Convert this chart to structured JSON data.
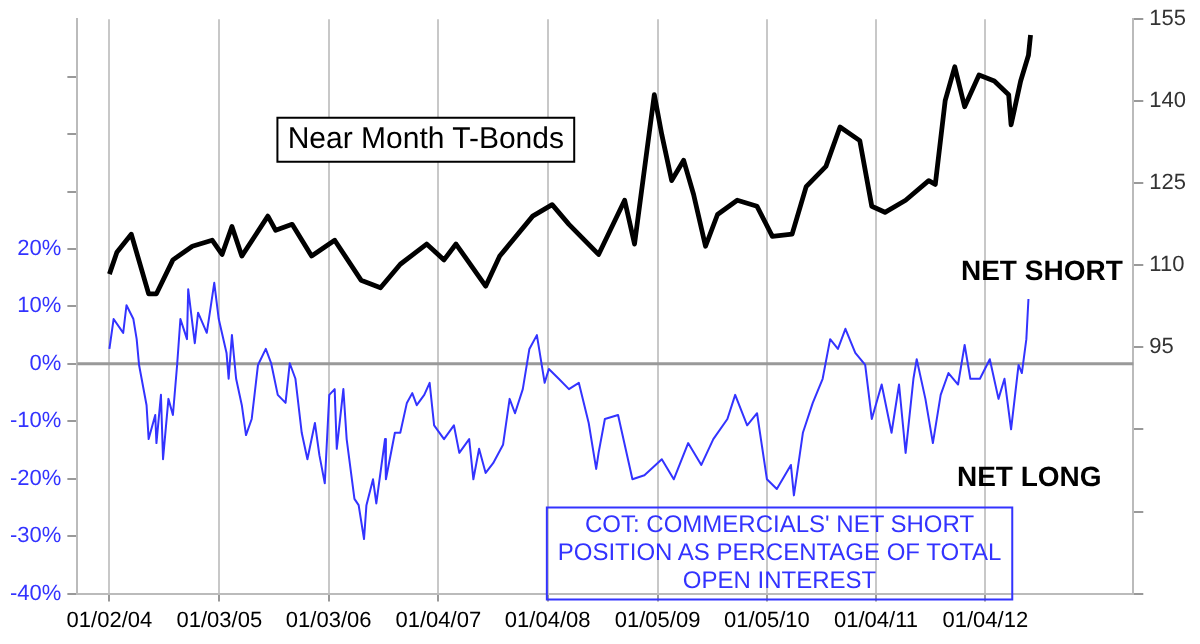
{
  "chart_data": {
    "type": "line",
    "xlim": [
      "2003-09-17",
      "2013-05-12"
    ],
    "xticks": [
      {
        "value": "2004-01-02",
        "label": "01/02/04"
      },
      {
        "value": "2005-01-03",
        "label": "01/03/05"
      },
      {
        "value": "2006-01-03",
        "label": "01/03/06"
      },
      {
        "value": "2007-01-04",
        "label": "01/04/07"
      },
      {
        "value": "2008-01-04",
        "label": "01/04/08"
      },
      {
        "value": "2009-01-05",
        "label": "01/05/09"
      },
      {
        "value": "2010-01-05",
        "label": "01/05/10"
      },
      {
        "value": "2011-01-04",
        "label": "01/04/11"
      },
      {
        "value": "2012-01-04",
        "label": "01/04/12"
      }
    ],
    "ylim": [
      -40,
      60
    ],
    "yticks": [
      {
        "value": -40,
        "label": "-40%"
      },
      {
        "value": -30,
        "label": "-30%"
      },
      {
        "value": -20,
        "label": "-20%"
      },
      {
        "value": -10,
        "label": "-10%"
      },
      {
        "value": 0,
        "label": "0%"
      },
      {
        "value": 10,
        "label": "10%"
      },
      {
        "value": 20,
        "label": "20%"
      },
      {
        "value": 30,
        "label": null
      },
      {
        "value": 40,
        "label": null
      },
      {
        "value": 50,
        "label": null
      }
    ],
    "y2lim": [
      50,
      155
    ],
    "y2ticks": [
      {
        "value": 50,
        "label": null
      },
      {
        "value": 65,
        "label": null
      },
      {
        "value": 80,
        "label": null
      },
      95,
      110,
      125,
      140,
      155
    ],
    "grid": "x",
    "legend": false,
    "marker": "none",
    "ref_lines": [
      {
        "axis": "y",
        "value": 0,
        "color": "#999999"
      }
    ],
    "annotations": [
      "NET SHORT",
      "NET LONG"
    ],
    "series": [
      {
        "name": "Near Month T-Bonds",
        "color": "#000000",
        "axis": "y2",
        "x": [
          "2004-01-02",
          "2004-01-27",
          "2004-03-15",
          "2004-05-12",
          "2004-06-07",
          "2004-08-01",
          "2004-10-05",
          "2004-12-10",
          "2005-01-12",
          "2005-02-14",
          "2005-03-19",
          "2005-06-14",
          "2005-07-10",
          "2005-09-03",
          "2005-11-07",
          "2006-01-23",
          "2006-04-21",
          "2006-06-25",
          "2006-08-30",
          "2006-11-26",
          "2007-01-23",
          "2007-03-04",
          "2007-06-11",
          "2007-07-28",
          "2007-11-15",
          "2008-01-19",
          "2008-03-15",
          "2008-06-22",
          "2008-09-17",
          "2008-10-20",
          "2008-12-25",
          "2009-01-19",
          "2009-02-21",
          "2009-04-02",
          "2009-05-05",
          "2009-06-14",
          "2009-07-24",
          "2009-09-28",
          "2009-12-03",
          "2010-01-23",
          "2010-03-30",
          "2010-05-16",
          "2010-07-21",
          "2010-09-06",
          "2010-11-11",
          "2010-12-21",
          "2011-02-03",
          "2011-04-13",
          "2011-06-29",
          "2011-07-21",
          "2011-08-23",
          "2011-09-24",
          "2011-10-27",
          "2011-12-14",
          "2012-02-03",
          "2012-03-22",
          "2012-03-30",
          "2012-05-01",
          "2012-05-27",
          "2012-06-03"
        ],
        "values": [
          108.4,
          112.4,
          115.7,
          104.8,
          104.8,
          111,
          113.5,
          114.6,
          112,
          117.1,
          111.7,
          119,
          116.4,
          117.5,
          111.7,
          114.6,
          107.3,
          105.9,
          110.2,
          113.9,
          111,
          113.9,
          106.2,
          111.7,
          119,
          121.1,
          117.5,
          112,
          121.9,
          113.9,
          141.2,
          133.9,
          125.5,
          129.2,
          123,
          113.5,
          119.3,
          121.9,
          120.8,
          115.3,
          115.7,
          124.4,
          128.1,
          135.3,
          132.8,
          120.8,
          119.7,
          121.9,
          125.5,
          124.8,
          140.1,
          146.3,
          139,
          144.8,
          143.7,
          141.2,
          135.7,
          143.7,
          148.4,
          152.1
        ]
      },
      {
        "name": "COT: COMMERCIALS' NET SHORT POSITION AS PERCENTAGE OF TOTAL OPEN INTEREST",
        "color": "#3333ff",
        "axis": "y",
        "x": [
          "2004-01-02",
          "2004-01-16",
          "2004-02-17",
          "2004-02-28",
          "2004-03-22",
          "2004-04-02",
          "2004-04-10",
          "2004-05-05",
          "2004-05-12",
          "2004-06-03",
          "2004-06-07",
          "2004-06-22",
          "2004-06-29",
          "2004-07-17",
          "2004-08-01",
          "2004-08-15",
          "2004-08-26",
          "2004-09-17",
          "2004-09-21",
          "2004-10-13",
          "2004-10-24",
          "2004-11-22",
          "2004-11-29",
          "2004-12-17",
          "2005-01-01",
          "2005-01-27",
          "2005-02-03",
          "2005-02-14",
          "2005-02-28",
          "2005-03-19",
          "2005-04-02",
          "2005-04-21",
          "2005-05-12",
          "2005-06-07",
          "2005-06-25",
          "2005-07-17",
          "2005-08-12",
          "2005-08-26",
          "2005-09-14",
          "2005-10-05",
          "2005-10-24",
          "2005-11-18",
          "2005-12-03",
          "2005-12-21",
          "2006-01-05",
          "2006-01-23",
          "2006-01-30",
          "2006-02-21",
          "2006-03-04",
          "2006-03-30",
          "2006-04-13",
          "2006-05-01",
          "2006-05-09",
          "2006-05-31",
          "2006-06-11",
          "2006-07-10",
          "2006-07-13",
          "2006-08-12",
          "2006-08-30",
          "2006-09-21",
          "2006-10-09",
          "2006-10-24",
          "2006-11-18",
          "2006-12-06",
          "2006-12-21",
          "2007-01-23",
          "2007-02-25",
          "2007-03-15",
          "2007-04-17",
          "2007-05-01",
          "2007-05-20",
          "2007-06-11",
          "2007-07-06",
          "2007-08-08",
          "2007-08-30",
          "2007-09-17",
          "2007-10-13",
          "2007-11-04",
          "2007-11-29",
          "2007-12-25",
          "2008-01-08",
          "2008-02-10",
          "2008-03-15",
          "2008-04-17",
          "2008-05-20",
          "2008-06-14",
          "2008-06-22",
          "2008-07-13",
          "2008-08-26",
          "2008-10-13",
          "2008-11-22",
          "2009-01-19",
          "2009-02-28",
          "2009-04-17",
          "2009-05-31",
          "2009-07-10",
          "2009-08-26",
          "2009-09-21",
          "2009-10-31",
          "2009-12-03",
          "2010-01-05",
          "2010-02-07",
          "2010-03-26",
          "2010-04-05",
          "2010-05-05",
          "2010-06-07",
          "2010-07-10",
          "2010-08-04",
          "2010-08-30",
          "2010-09-24",
          "2010-10-27",
          "2010-11-29",
          "2010-12-21",
          "2011-01-23",
          "2011-02-25",
          "2011-03-22",
          "2011-04-13",
          "2011-05-09",
          "2011-05-20",
          "2011-06-18",
          "2011-07-13",
          "2011-08-08",
          "2011-09-03",
          "2011-10-05",
          "2011-10-27",
          "2011-11-15",
          "2011-12-17",
          "2012-01-19",
          "2012-02-17",
          "2012-03-08",
          "2012-03-30",
          "2012-04-24",
          "2012-05-05",
          "2012-05-20",
          "2012-05-27"
        ],
        "values": [
          2.6,
          7.8,
          5.4,
          10.2,
          7.8,
          4.3,
          -0.2,
          -7.2,
          -13.1,
          -8.9,
          -13.8,
          -5.4,
          -16.6,
          -6.1,
          -8.9,
          -0.2,
          7.8,
          4.3,
          13,
          3.6,
          8.9,
          5.4,
          7.8,
          14.1,
          7.8,
          1.9,
          -2.6,
          5,
          -2.6,
          -7.2,
          -12.4,
          -9.6,
          -0.2,
          2.6,
          0.1,
          -5.4,
          -6.8,
          0.1,
          -2.6,
          -12,
          -16.6,
          -10.3,
          -15.9,
          -20.8,
          -5.4,
          -4.4,
          -14.8,
          -4.4,
          -13.1,
          -23.5,
          -24.6,
          -30.5,
          -24.6,
          -20.1,
          -24.3,
          -13.1,
          -20.1,
          -12,
          -12,
          -6.8,
          -5.1,
          -7.2,
          -5.4,
          -3.3,
          -10.7,
          -13.1,
          -10.7,
          -15.5,
          -13.1,
          -20.1,
          -14.8,
          -19,
          -17.3,
          -14.1,
          -6.1,
          -8.6,
          -4.4,
          2.6,
          5,
          -3.3,
          -0.9,
          -2.6,
          -4.4,
          -3.3,
          -10.3,
          -18.3,
          -15.5,
          -9.6,
          -8.9,
          -20.1,
          -19.4,
          -16.6,
          -20.1,
          -13.8,
          -17.6,
          -13.1,
          -9.6,
          -5.4,
          -10.7,
          -8.6,
          -20.1,
          -21.8,
          -17.6,
          -22.9,
          -12,
          -6.8,
          -2.6,
          4.3,
          2.6,
          6.1,
          1.9,
          -0.2,
          -9.6,
          -3.6,
          -12,
          -3.6,
          -15.5,
          -2.6,
          0.8,
          -6.1,
          -13.8,
          -5.4,
          -1.6,
          -3.6,
          3.3,
          -2.6,
          -2.6,
          0.8,
          -6.1,
          -2.6,
          -11.4,
          -0.2,
          -1.6,
          4.3,
          11.3
        ]
      }
    ]
  }
}
